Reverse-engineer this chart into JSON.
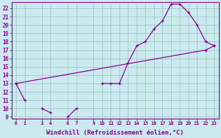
{
  "xlabel": "Windchill (Refroidissement éolien,°C)",
  "bg_color": "#cce8f0",
  "line_color": "#880088",
  "grid_color": "#99ccbb",
  "hours": [
    0,
    1,
    2,
    3,
    4,
    5,
    6,
    7,
    8,
    9,
    10,
    11,
    12,
    13,
    14,
    15,
    16,
    17,
    18,
    19,
    20,
    21,
    22,
    23
  ],
  "curve1": [
    13,
    11,
    null,
    10,
    9.5,
    null,
    9,
    10,
    null,
    null,
    13,
    13,
    13,
    15.5,
    17.5,
    18,
    19.5,
    20.5,
    22.5,
    22.5,
    21.5,
    20,
    18,
    17.5
  ],
  "curve2_x": [
    0,
    22,
    23
  ],
  "curve2_y": [
    13,
    17.0,
    17.5
  ],
  "ylim": [
    9,
    22.5
  ],
  "xlim": [
    -0.5,
    23.5
  ],
  "yticks": [
    9,
    10,
    11,
    12,
    13,
    14,
    15,
    16,
    17,
    18,
    19,
    20,
    21,
    22
  ],
  "xticks": [
    0,
    1,
    3,
    4,
    6,
    7,
    9,
    10,
    11,
    12,
    13,
    14,
    15,
    16,
    17,
    18,
    19,
    20,
    21,
    22,
    23
  ],
  "tick_fontsize": 5.5,
  "xlabel_fontsize": 6.5
}
